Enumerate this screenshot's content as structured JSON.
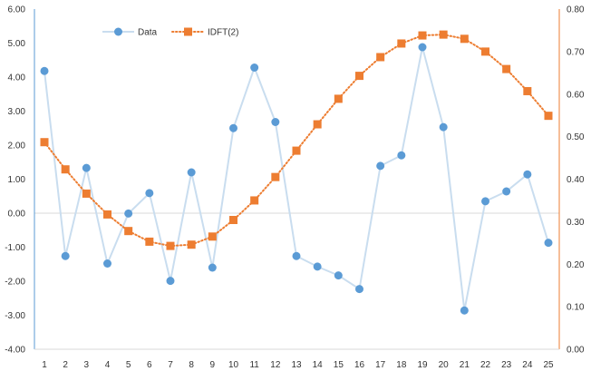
{
  "chart_data": {
    "type": "line",
    "title": "",
    "xlabel": "",
    "ylabel": "",
    "x": [
      1,
      2,
      3,
      4,
      5,
      6,
      7,
      8,
      9,
      10,
      11,
      12,
      13,
      14,
      15,
      16,
      17,
      18,
      19,
      20,
      21,
      22,
      23,
      24,
      25
    ],
    "ylim_left": [
      -4,
      6
    ],
    "ylim_right": [
      0,
      0.8
    ],
    "left_ticks": [
      "-4.00",
      "-3.00",
      "-2.00",
      "-1.00",
      "0.00",
      "1.00",
      "2.00",
      "3.00",
      "4.00",
      "5.00",
      "6.00"
    ],
    "right_ticks": [
      "0.00",
      "0.10",
      "0.20",
      "0.30",
      "0.40",
      "0.50",
      "0.60",
      "0.70",
      "0.80"
    ],
    "legend_position": "top-left",
    "series": [
      {
        "name": "Data",
        "axis": "left",
        "marker": "circle",
        "line_style": "solid",
        "color": "#5b9bd5",
        "line_color": "#c9ddef",
        "values": [
          4.18,
          -1.26,
          1.33,
          -1.48,
          -0.01,
          0.59,
          -1.99,
          1.2,
          -1.6,
          2.5,
          4.28,
          2.68,
          -1.26,
          -1.57,
          -1.83,
          -2.23,
          1.39,
          1.7,
          4.88,
          2.53,
          -2.86,
          0.35,
          0.64,
          1.14,
          -0.87
        ]
      },
      {
        "name": "IDFT(2)",
        "axis": "right",
        "marker": "square",
        "line_style": "dotted",
        "color": "#ed7d31",
        "line_color": "#ed7d31",
        "values": [
          0.487,
          0.423,
          0.366,
          0.317,
          0.278,
          0.253,
          0.243,
          0.246,
          0.265,
          0.304,
          0.35,
          0.405,
          0.467,
          0.529,
          0.589,
          0.643,
          0.687,
          0.719,
          0.738,
          0.74,
          0.73,
          0.7,
          0.659,
          0.607,
          0.549
        ]
      }
    ]
  }
}
